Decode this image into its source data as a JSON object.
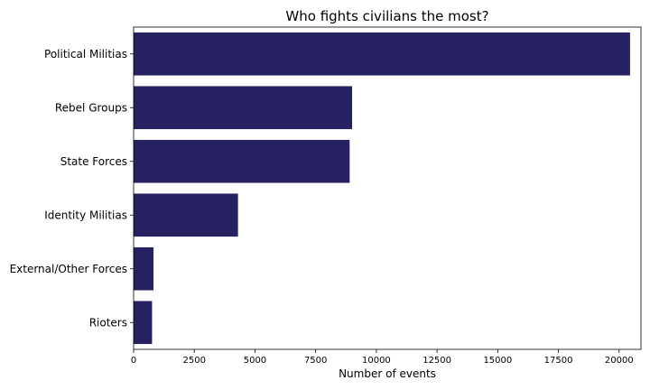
{
  "chart_data": {
    "type": "bar",
    "orientation": "horizontal",
    "title": "Who fights civilians the most?",
    "xlabel": "Number of events",
    "ylabel": "",
    "categories": [
      "Political Militias",
      "Rebel Groups",
      "State Forces",
      "Identity Militias",
      "External/Other Forces",
      "Rioters"
    ],
    "values": [
      20450,
      9000,
      8900,
      4300,
      820,
      760
    ],
    "xlim": [
      0,
      20900
    ],
    "xticks": [
      0,
      2500,
      5000,
      7500,
      10000,
      12500,
      15000,
      17500,
      20000
    ],
    "xtick_labels": [
      "0",
      "2500",
      "5000",
      "7500",
      "10000",
      "12500",
      "15000",
      "17500",
      "20000"
    ],
    "bar_color": "#262262",
    "grid": false,
    "legend": "none"
  }
}
